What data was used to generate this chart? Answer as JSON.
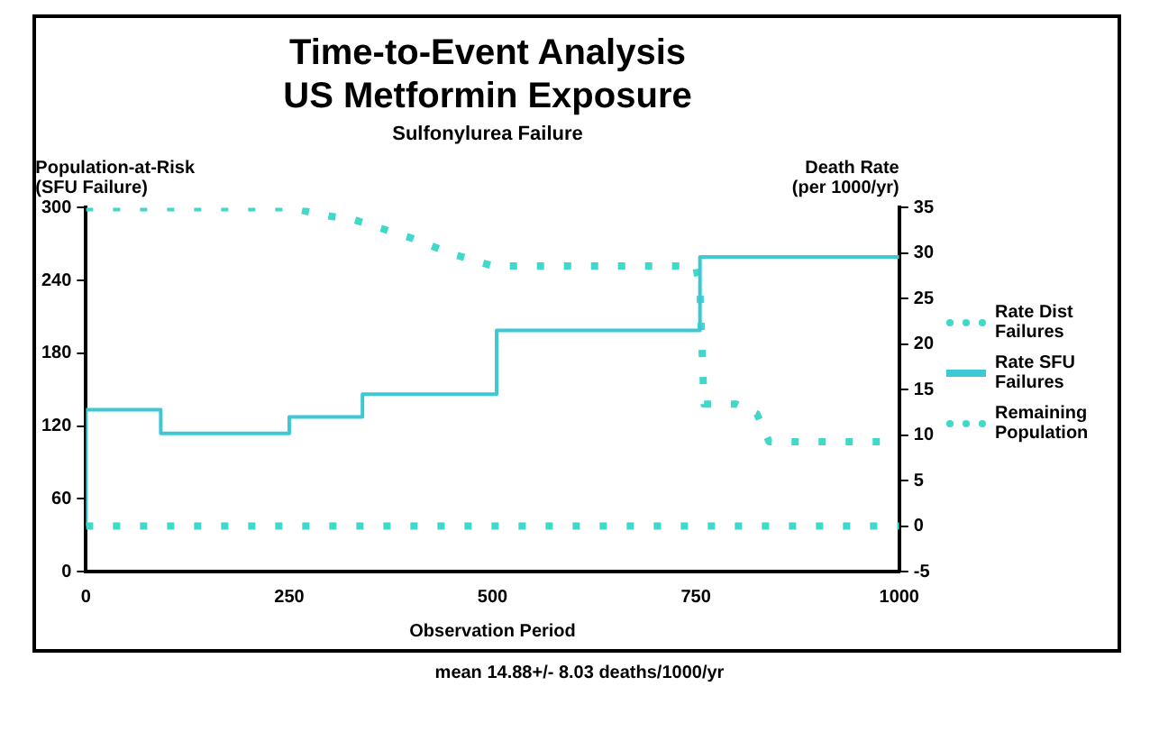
{
  "chart_data": {
    "type": "line",
    "title": "Time-to-Event Analysis\nUS Metformin Exposure",
    "subtitle": "Sulfonylurea Failure",
    "xlabel": "Observation Period",
    "ylabel": "Population-at-Risk\n(SFU Failure)",
    "y2label": "Death Rate\n(per 1000/yr)",
    "annotations": [
      "mean 14.88+/- 8.03 deaths/1000/yr"
    ],
    "xlim": [
      0,
      1000
    ],
    "xticks": [
      0,
      250,
      500,
      750,
      1000
    ],
    "ylim": [
      0,
      300
    ],
    "yticks": [
      0,
      60,
      120,
      180,
      240,
      300
    ],
    "y2lim": [
      -5,
      35
    ],
    "y2ticks": [
      -5,
      0,
      5,
      10,
      15,
      20,
      25,
      30,
      35
    ],
    "grid": false,
    "legend": "right",
    "series": [
      {
        "name": "Rate Dist Failures",
        "type": "line",
        "axis": "y2",
        "line_style": "dotted",
        "color": "#40d8c8",
        "x": [
          0,
          1000
        ],
        "values": [
          0,
          0
        ]
      },
      {
        "name": "Rate SFU Failures",
        "type": "step",
        "axis": "y2",
        "line_style": "solid",
        "color": "#3cc8d4",
        "x": [
          0,
          92,
          250,
          340,
          505,
          755,
          825,
          1000
        ],
        "values": [
          0,
          12.8,
          10.2,
          12,
          14.5,
          21.5,
          29.6,
          29.6
        ]
      },
      {
        "name": "Remaining Population",
        "type": "line",
        "line_style": "dotted",
        "color": "#40d8c8",
        "x": [
          0,
          250,
          300,
          330,
          400,
          450,
          500,
          750,
          755,
          760,
          800,
          825,
          840,
          1000
        ],
        "values": [
          300,
          300,
          293,
          290,
          275,
          262,
          252,
          252,
          231,
          138,
          138,
          130,
          107,
          107
        ]
      }
    ]
  }
}
